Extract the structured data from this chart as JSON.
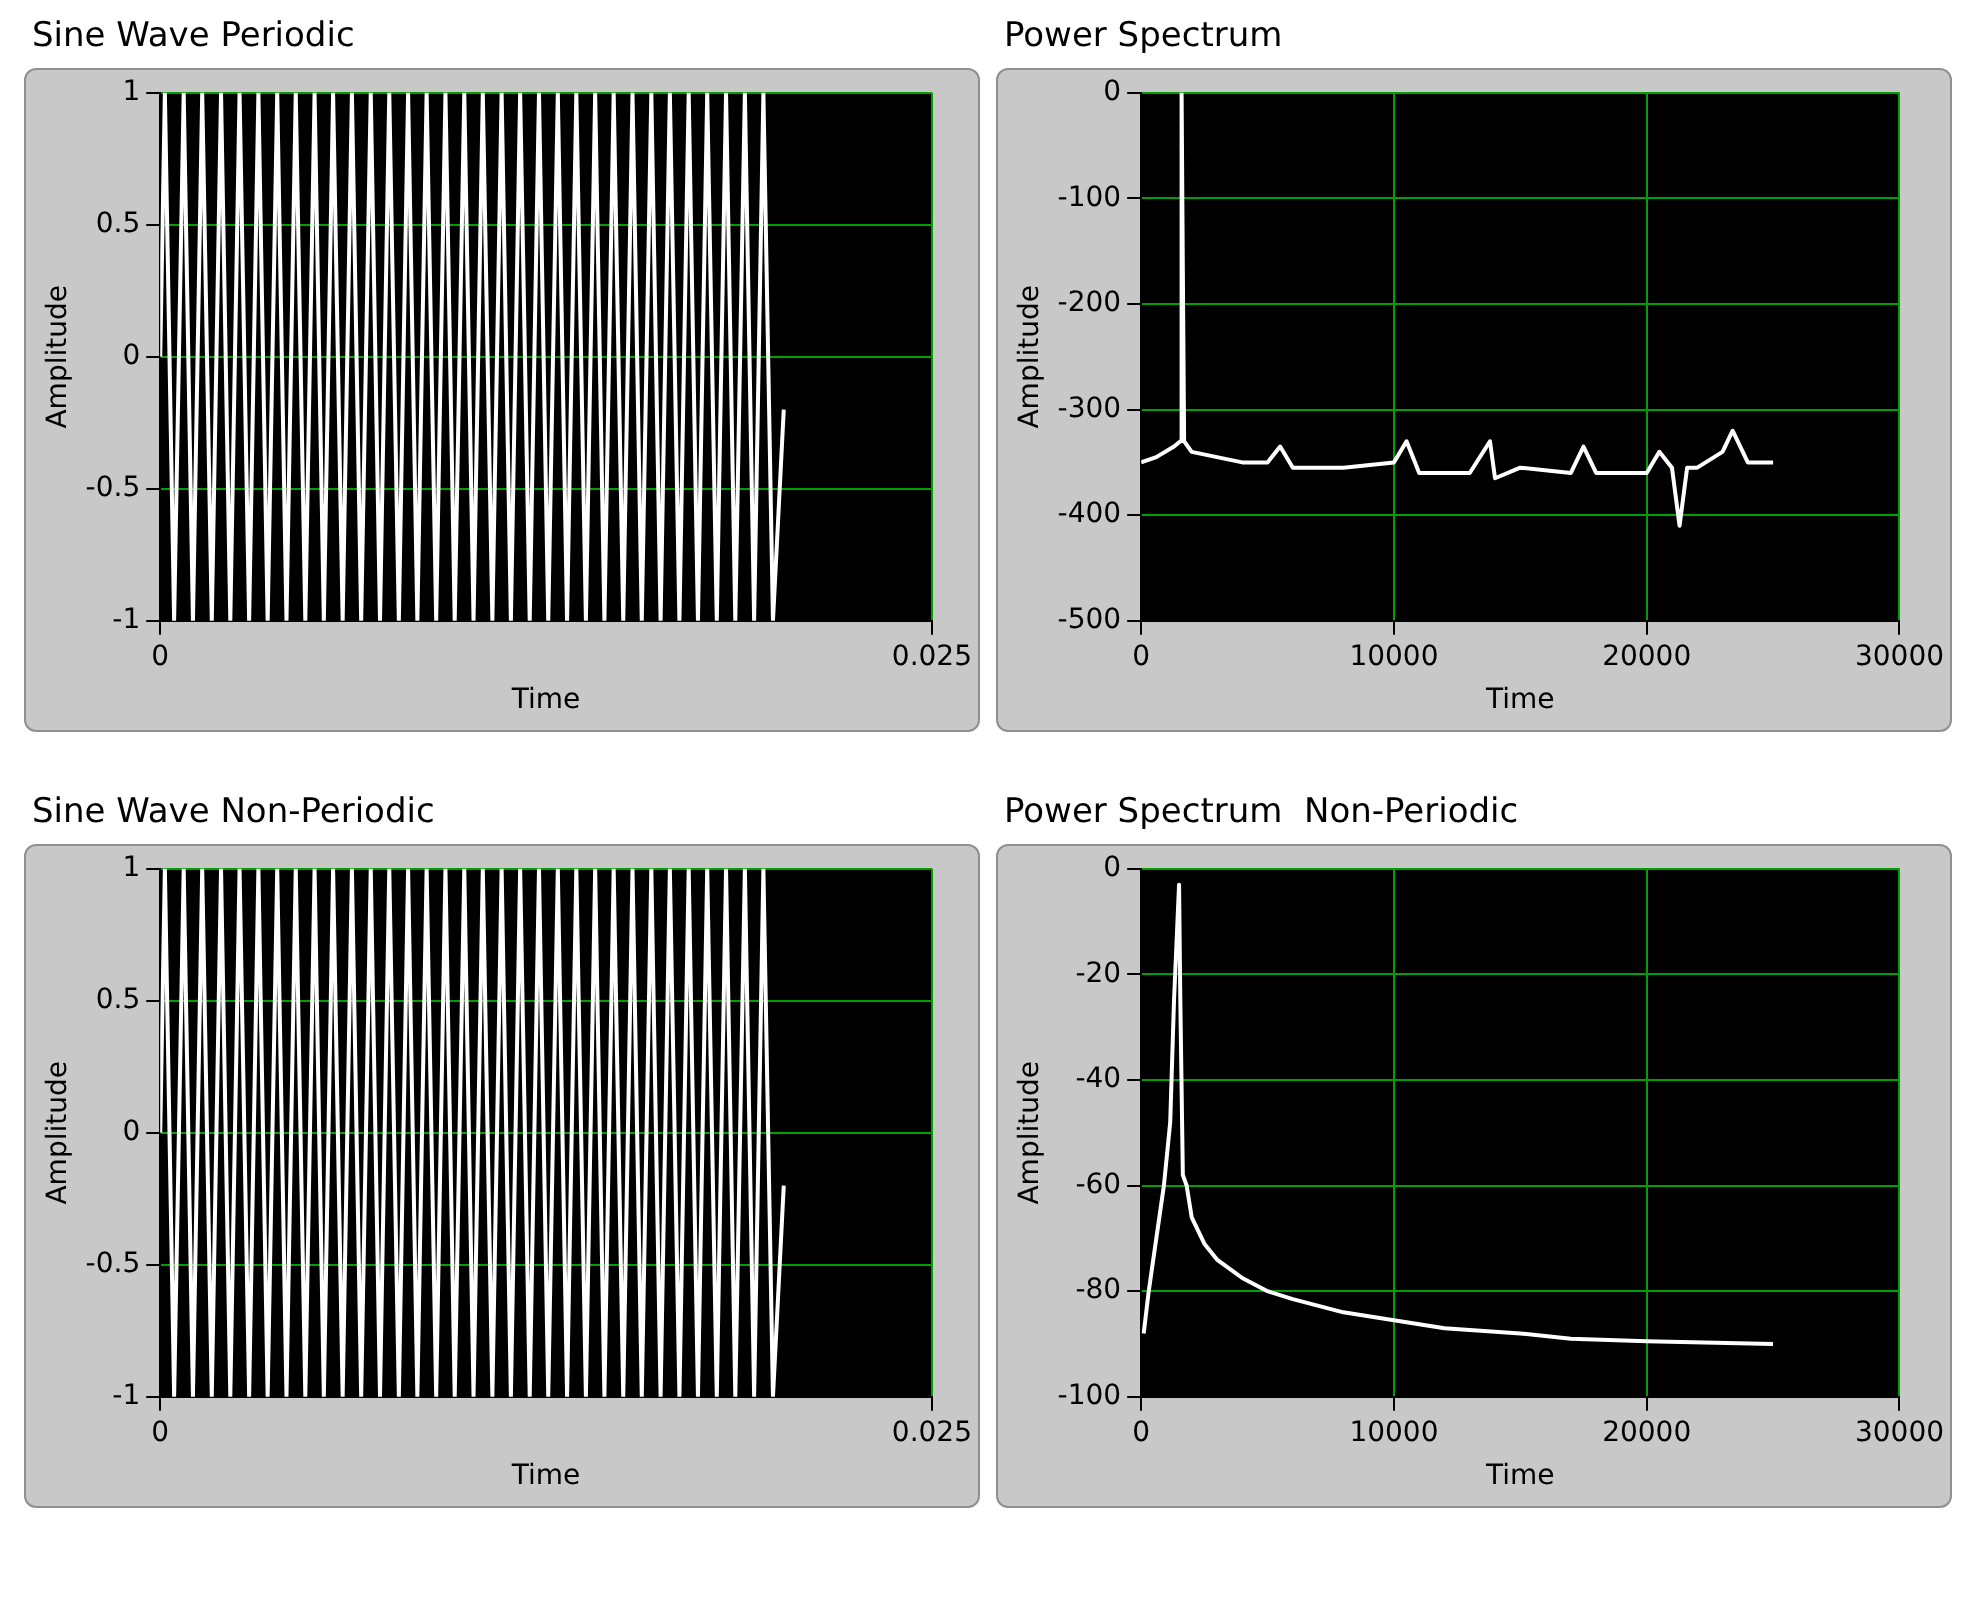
{
  "chart_data": [
    {
      "type": "line",
      "title": "Sine Wave Periodic",
      "xlabel": "Time",
      "ylabel": "Amplitude",
      "color": "#ffffff",
      "grid": true,
      "xlim": [
        0,
        0.025
      ],
      "xticks": [
        0,
        0.025
      ],
      "ylim": [
        -1,
        1
      ],
      "yticks": [
        -1,
        -0.5,
        0,
        0.5,
        1
      ],
      "x": [
        0,
        0.00015,
        0.00045,
        0.00076,
        0.00106,
        0.00136,
        0.00167,
        0.00197,
        0.00227,
        0.00257,
        0.00288,
        0.00318,
        0.00348,
        0.00379,
        0.00409,
        0.00439,
        0.0047,
        0.005,
        0.0053,
        0.0056,
        0.00591,
        0.00621,
        0.00651,
        0.00682,
        0.00712,
        0.00742,
        0.00773,
        0.00803,
        0.00833,
        0.00863,
        0.00894,
        0.00924,
        0.00954,
        0.00985,
        0.01015,
        0.01045,
        0.01076,
        0.01106,
        0.01136,
        0.01166,
        0.01197,
        0.01227,
        0.01257,
        0.01288,
        0.01318,
        0.01348,
        0.01379,
        0.01409,
        0.01439,
        0.01469,
        0.015,
        0.0153,
        0.0156,
        0.01591,
        0.01621,
        0.01651,
        0.01682,
        0.01712,
        0.01742,
        0.01772,
        0.01803,
        0.01833,
        0.01863,
        0.01894,
        0.01924,
        0.01954,
        0.01985,
        0.0202
      ],
      "values": [
        0,
        1,
        -1,
        1,
        -1,
        1,
        -1,
        1,
        -1,
        1,
        -1,
        1,
        -1,
        1,
        -1,
        1,
        -1,
        1,
        -1,
        1,
        -1,
        1,
        -1,
        1,
        -1,
        1,
        -1,
        1,
        -1,
        1,
        -1,
        1,
        -1,
        1,
        -1,
        1,
        -1,
        1,
        -1,
        1,
        -1,
        1,
        -1,
        1,
        -1,
        1,
        -1,
        1,
        -1,
        1,
        -1,
        1,
        -1,
        1,
        -1,
        1,
        -1,
        1,
        -1,
        1,
        -1,
        1,
        -1,
        1,
        -1,
        1,
        -1,
        -0.2
      ]
    },
    {
      "type": "line",
      "title": "Power Spectrum",
      "xlabel": "Time",
      "ylabel": "Amplitude",
      "color": "#ffffff",
      "grid": true,
      "xlim": [
        0,
        30000
      ],
      "xticks": [
        0,
        10000,
        20000,
        30000
      ],
      "ylim": [
        -500,
        0
      ],
      "yticks": [
        -500,
        -400,
        -300,
        -200,
        -100,
        0
      ],
      "x": [
        0,
        600,
        1300,
        1550,
        1600,
        1650,
        1700,
        2000,
        3000,
        4000,
        5000,
        5500,
        6000,
        8000,
        10000,
        10500,
        11000,
        13000,
        13800,
        14000,
        15000,
        17000,
        17500,
        18000,
        20000,
        20500,
        21000,
        21300,
        21600,
        22000,
        23000,
        23400,
        24000,
        25000
      ],
      "values": [
        -350,
        -345,
        -335,
        -330,
        0,
        -170,
        -330,
        -340,
        -345,
        -350,
        -350,
        -335,
        -355,
        -355,
        -350,
        -330,
        -360,
        -360,
        -330,
        -365,
        -355,
        -360,
        -335,
        -360,
        -360,
        -340,
        -355,
        -410,
        -355,
        -355,
        -340,
        -320,
        -350,
        -350
      ]
    },
    {
      "type": "line",
      "title": "Sine Wave Non-Periodic",
      "xlabel": "Time",
      "ylabel": "Amplitude",
      "color": "#ffffff",
      "grid": true,
      "xlim": [
        0,
        0.025
      ],
      "xticks": [
        0,
        0.025
      ],
      "ylim": [
        -1,
        1
      ],
      "yticks": [
        -1,
        -0.5,
        0,
        0.5,
        1
      ],
      "x": [
        0,
        0.00015,
        0.00045,
        0.00076,
        0.00106,
        0.00136,
        0.00167,
        0.00197,
        0.00227,
        0.00257,
        0.00288,
        0.00318,
        0.00348,
        0.00379,
        0.00409,
        0.00439,
        0.0047,
        0.005,
        0.0053,
        0.0056,
        0.00591,
        0.00621,
        0.00651,
        0.00682,
        0.00712,
        0.00742,
        0.00773,
        0.00803,
        0.00833,
        0.00863,
        0.00894,
        0.00924,
        0.00954,
        0.00985,
        0.01015,
        0.01045,
        0.01076,
        0.01106,
        0.01136,
        0.01166,
        0.01197,
        0.01227,
        0.01257,
        0.01288,
        0.01318,
        0.01348,
        0.01379,
        0.01409,
        0.01439,
        0.01469,
        0.015,
        0.0153,
        0.0156,
        0.01591,
        0.01621,
        0.01651,
        0.01682,
        0.01712,
        0.01742,
        0.01772,
        0.01803,
        0.01833,
        0.01863,
        0.01894,
        0.01924,
        0.01954,
        0.01985,
        0.0202
      ],
      "values": [
        0,
        1,
        -1,
        1,
        -1,
        1,
        -1,
        1,
        -1,
        1,
        -1,
        1,
        -1,
        1,
        -1,
        1,
        -1,
        1,
        -1,
        1,
        -1,
        1,
        -1,
        1,
        -1,
        1,
        -1,
        1,
        -1,
        1,
        -1,
        1,
        -1,
        1,
        -1,
        1,
        -1,
        1,
        -1,
        1,
        -1,
        1,
        -1,
        1,
        -1,
        1,
        -1,
        1,
        -1,
        1,
        -1,
        1,
        -1,
        1,
        -1,
        1,
        -1,
        1,
        -1,
        1,
        -1,
        1,
        -1,
        1,
        -1,
        1,
        -1,
        -0.2
      ]
    },
    {
      "type": "line",
      "title": "Power Spectrum  Non-Periodic",
      "xlabel": "Time",
      "ylabel": "Amplitude",
      "color": "#ffffff",
      "grid": true,
      "xlim": [
        0,
        30000
      ],
      "xticks": [
        0,
        10000,
        20000,
        30000
      ],
      "ylim": [
        -100,
        0
      ],
      "yticks": [
        -100,
        -80,
        -60,
        -40,
        -20,
        0
      ],
      "x": [
        100,
        300,
        600,
        900,
        1150,
        1300,
        1500,
        1550,
        1650,
        1800,
        2000,
        2500,
        3000,
        4000,
        5000,
        6000,
        8000,
        10000,
        12000,
        15000,
        17000,
        20000,
        25000
      ],
      "values": [
        -88,
        -80,
        -70,
        -60,
        -48,
        -25,
        -3,
        -25,
        -58,
        -60,
        -66,
        -71,
        -74,
        -77.5,
        -80,
        -81.5,
        -84,
        -85.5,
        -87,
        -88,
        -89,
        -89.5,
        -90
      ]
    }
  ]
}
